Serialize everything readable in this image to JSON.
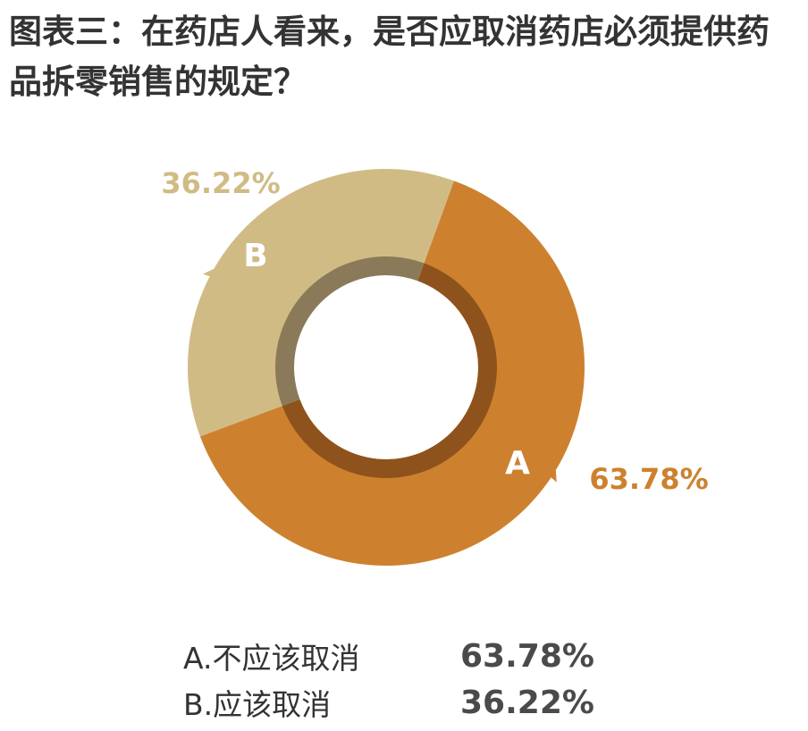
{
  "title": "图表三：在药店人看来，是否应取消药店必须提供药品拆零销售的规定？",
  "colors": {
    "a": "#cd812e",
    "b": "#d1bb85",
    "ring_a": "#8e531c",
    "ring_b": "#8a7a5a",
    "legend_value": "#4a4a4a"
  },
  "chart_data": {
    "type": "pie",
    "title": "图表三：在药店人看来，是否应取消药店必须提供药品拆零销售的规定？",
    "slices": [
      {
        "key": "A",
        "label": "A.不应该取消",
        "value": 63.78,
        "value_label": "63.78%",
        "color": "#cd812e"
      },
      {
        "key": "B",
        "label": "B.应该取消",
        "value": 36.22,
        "value_label": "36.22%",
        "color": "#d1bb85"
      }
    ]
  },
  "legend": [
    {
      "label": "A.不应该取消",
      "value": "63.78%"
    },
    {
      "label": "B.应该取消",
      "value": "36.22%"
    }
  ]
}
